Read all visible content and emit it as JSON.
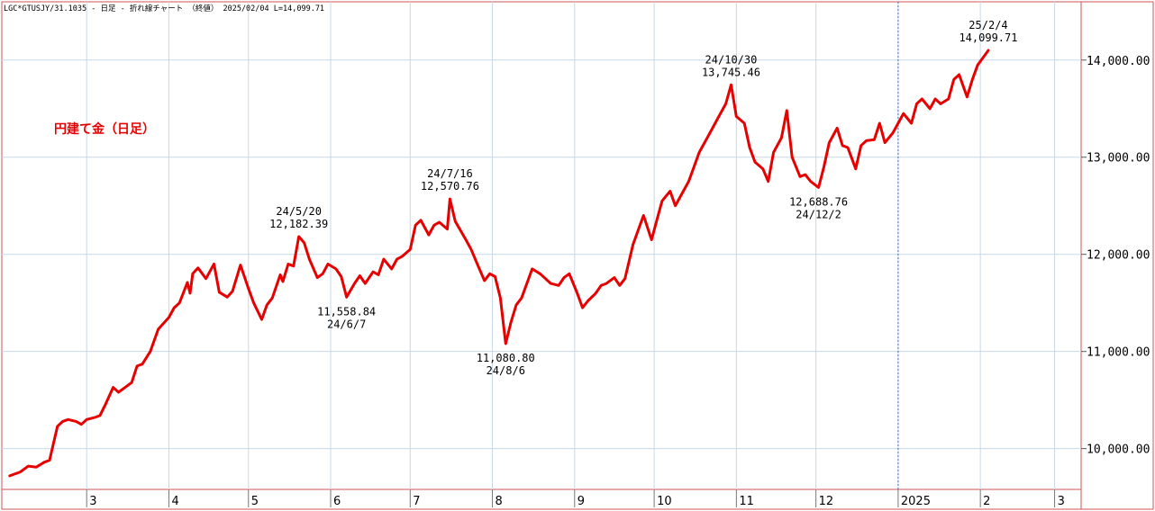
{
  "header": {
    "info": "LGC*GTUSJY/31.1035 - 日足 - 折れ線チャート （終値） 2025/02/04 L=14,099.71"
  },
  "chart_title": "円建て金（日足）",
  "colors": {
    "line": "#e60000",
    "border": "#cc5555",
    "grid": "#c8d8e8",
    "title": "#e60000",
    "text": "#000000"
  },
  "chart_data": {
    "type": "line",
    "title": "円建て金（日足）",
    "x_unit": "date",
    "ylim": [
      9580,
      14600
    ],
    "yticks": [
      10000,
      11000,
      12000,
      13000,
      14000
    ],
    "ytick_labels": [
      "10,000.00",
      "11,000.00",
      "12,000.00",
      "13,000.00",
      "14,000.00"
    ],
    "xtick_labels": [
      "3",
      "4",
      "5",
      "6",
      "7",
      "8",
      "9",
      "10",
      "11",
      "12",
      "2025",
      "2",
      "3"
    ],
    "xtick_dates": [
      "2024-03-01",
      "2024-04-01",
      "2024-05-01",
      "2024-06-01",
      "2024-07-01",
      "2024-08-01",
      "2024-09-01",
      "2024-10-01",
      "2024-11-01",
      "2024-12-01",
      "2025-01-01",
      "2025-02-01",
      "2025-03-01"
    ],
    "year_divider_date": "2025-01-01",
    "grid": true,
    "series": [
      {
        "points": [
          [
            "2024-02-01",
            9720
          ],
          [
            "2024-02-05",
            9760
          ],
          [
            "2024-02-08",
            9820
          ],
          [
            "2024-02-11",
            9810
          ],
          [
            "2024-02-14",
            9860
          ],
          [
            "2024-02-16",
            9880
          ],
          [
            "2024-02-19",
            10230
          ],
          [
            "2024-02-21",
            10280
          ],
          [
            "2024-02-23",
            10300
          ],
          [
            "2024-02-26",
            10280
          ],
          [
            "2024-02-28",
            10250
          ],
          [
            "2024-03-01",
            10300
          ],
          [
            "2024-03-04",
            10320
          ],
          [
            "2024-03-06",
            10340
          ],
          [
            "2024-03-08",
            10450
          ],
          [
            "2024-03-11",
            10630
          ],
          [
            "2024-03-13",
            10580
          ],
          [
            "2024-03-15",
            10620
          ],
          [
            "2024-03-18",
            10680
          ],
          [
            "2024-03-20",
            10850
          ],
          [
            "2024-03-22",
            10870
          ],
          [
            "2024-03-25",
            11000
          ],
          [
            "2024-03-28",
            11230
          ],
          [
            "2024-04-01",
            11350
          ],
          [
            "2024-04-03",
            11450
          ],
          [
            "2024-04-05",
            11500
          ],
          [
            "2024-04-08",
            11710
          ],
          [
            "2024-04-09",
            11600
          ],
          [
            "2024-04-10",
            11800
          ],
          [
            "2024-04-12",
            11860
          ],
          [
            "2024-04-15",
            11750
          ],
          [
            "2024-04-18",
            11900
          ],
          [
            "2024-04-20",
            11610
          ],
          [
            "2024-04-23",
            11560
          ],
          [
            "2024-04-25",
            11620
          ],
          [
            "2024-04-28",
            11890
          ],
          [
            "2024-05-01",
            11650
          ],
          [
            "2024-05-03",
            11500
          ],
          [
            "2024-05-06",
            11330
          ],
          [
            "2024-05-08",
            11480
          ],
          [
            "2024-05-10",
            11550
          ],
          [
            "2024-05-13",
            11790
          ],
          [
            "2024-05-14",
            11720
          ],
          [
            "2024-05-16",
            11900
          ],
          [
            "2024-05-18",
            11880
          ],
          [
            "2024-05-20",
            12182.39
          ],
          [
            "2024-05-22",
            12120
          ],
          [
            "2024-05-24",
            11950
          ],
          [
            "2024-05-27",
            11760
          ],
          [
            "2024-05-29",
            11800
          ],
          [
            "2024-05-31",
            11900
          ],
          [
            "2024-06-03",
            11850
          ],
          [
            "2024-06-05",
            11770
          ],
          [
            "2024-06-07",
            11558.84
          ],
          [
            "2024-06-10",
            11700
          ],
          [
            "2024-06-12",
            11780
          ],
          [
            "2024-06-14",
            11700
          ],
          [
            "2024-06-17",
            11820
          ],
          [
            "2024-06-19",
            11790
          ],
          [
            "2024-06-21",
            11950
          ],
          [
            "2024-06-24",
            11850
          ],
          [
            "2024-06-26",
            11950
          ],
          [
            "2024-06-28",
            11980
          ],
          [
            "2024-07-01",
            12050
          ],
          [
            "2024-07-03",
            12300
          ],
          [
            "2024-07-05",
            12350
          ],
          [
            "2024-07-08",
            12200
          ],
          [
            "2024-07-10",
            12300
          ],
          [
            "2024-07-12",
            12330
          ],
          [
            "2024-07-15",
            12260
          ],
          [
            "2024-07-16",
            12570.76
          ],
          [
            "2024-07-18",
            12340
          ],
          [
            "2024-07-22",
            12150
          ],
          [
            "2024-07-24",
            12050
          ],
          [
            "2024-07-26",
            11920
          ],
          [
            "2024-07-29",
            11730
          ],
          [
            "2024-07-31",
            11800
          ],
          [
            "2024-08-02",
            11770
          ],
          [
            "2024-08-04",
            11550
          ],
          [
            "2024-08-06",
            11080.8
          ],
          [
            "2024-08-08",
            11300
          ],
          [
            "2024-08-10",
            11480
          ],
          [
            "2024-08-12",
            11550
          ],
          [
            "2024-08-14",
            11700
          ],
          [
            "2024-08-16",
            11850
          ],
          [
            "2024-08-19",
            11800
          ],
          [
            "2024-08-21",
            11750
          ],
          [
            "2024-08-23",
            11700
          ],
          [
            "2024-08-26",
            11680
          ],
          [
            "2024-08-28",
            11760
          ],
          [
            "2024-08-30",
            11800
          ],
          [
            "2024-09-02",
            11600
          ],
          [
            "2024-09-04",
            11450
          ],
          [
            "2024-09-06",
            11520
          ],
          [
            "2024-09-09",
            11600
          ],
          [
            "2024-09-11",
            11680
          ],
          [
            "2024-09-13",
            11700
          ],
          [
            "2024-09-16",
            11760
          ],
          [
            "2024-09-18",
            11680
          ],
          [
            "2024-09-20",
            11750
          ],
          [
            "2024-09-23",
            12100
          ],
          [
            "2024-09-25",
            12250
          ],
          [
            "2024-09-27",
            12400
          ],
          [
            "2024-09-30",
            12150
          ],
          [
            "2024-10-02",
            12350
          ],
          [
            "2024-10-04",
            12550
          ],
          [
            "2024-10-07",
            12650
          ],
          [
            "2024-10-09",
            12500
          ],
          [
            "2024-10-11",
            12600
          ],
          [
            "2024-10-14",
            12750
          ],
          [
            "2024-10-16",
            12900
          ],
          [
            "2024-10-18",
            13050
          ],
          [
            "2024-10-21",
            13200
          ],
          [
            "2024-10-23",
            13300
          ],
          [
            "2024-10-25",
            13400
          ],
          [
            "2024-10-28",
            13550
          ],
          [
            "2024-10-30",
            13745.46
          ],
          [
            "2024-11-01",
            13420
          ],
          [
            "2024-11-04",
            13350
          ],
          [
            "2024-11-06",
            13100
          ],
          [
            "2024-11-08",
            12950
          ],
          [
            "2024-11-11",
            12880
          ],
          [
            "2024-11-13",
            12750
          ],
          [
            "2024-11-15",
            13050
          ],
          [
            "2024-11-18",
            13200
          ],
          [
            "2024-11-20",
            13480
          ],
          [
            "2024-11-22",
            13000
          ],
          [
            "2024-11-25",
            12800
          ],
          [
            "2024-11-27",
            12820
          ],
          [
            "2024-11-29",
            12750
          ],
          [
            "2024-12-02",
            12688.76
          ],
          [
            "2024-12-04",
            12900
          ],
          [
            "2024-12-06",
            13150
          ],
          [
            "2024-12-09",
            13300
          ],
          [
            "2024-12-11",
            13120
          ],
          [
            "2024-12-13",
            13100
          ],
          [
            "2024-12-16",
            12880
          ],
          [
            "2024-12-18",
            13120
          ],
          [
            "2024-12-20",
            13170
          ],
          [
            "2024-12-23",
            13180
          ],
          [
            "2024-12-25",
            13350
          ],
          [
            "2024-12-27",
            13150
          ],
          [
            "2024-12-30",
            13250
          ],
          [
            "2025-01-01",
            13350
          ],
          [
            "2025-01-03",
            13450
          ],
          [
            "2025-01-06",
            13350
          ],
          [
            "2025-01-08",
            13550
          ],
          [
            "2025-01-10",
            13600
          ],
          [
            "2025-01-13",
            13500
          ],
          [
            "2025-01-15",
            13600
          ],
          [
            "2025-01-17",
            13550
          ],
          [
            "2025-01-20",
            13600
          ],
          [
            "2025-01-22",
            13800
          ],
          [
            "2025-01-24",
            13850
          ],
          [
            "2025-01-27",
            13620
          ],
          [
            "2025-01-29",
            13800
          ],
          [
            "2025-01-31",
            13950
          ],
          [
            "2025-02-04",
            14099.71
          ]
        ]
      }
    ],
    "annotations": [
      {
        "date": "2024-05-20",
        "value": 12182.39,
        "date_label": "24/5/20",
        "value_label": "12,182.39",
        "position": "above"
      },
      {
        "date": "2024-06-07",
        "value": 11558.84,
        "date_label": "24/6/7",
        "value_label": "11,558.84",
        "position": "below"
      },
      {
        "date": "2024-07-16",
        "value": 12570.76,
        "date_label": "24/7/16",
        "value_label": "12,570.76",
        "position": "above"
      },
      {
        "date": "2024-08-06",
        "value": 11080.8,
        "date_label": "24/8/6",
        "value_label": "11,080.80",
        "position": "below"
      },
      {
        "date": "2024-10-30",
        "value": 13745.46,
        "date_label": "24/10/30",
        "value_label": "13,745.46",
        "position": "above"
      },
      {
        "date": "2024-12-02",
        "value": 12688.76,
        "date_label": "24/12/2",
        "value_label": "12,688.76",
        "position": "below"
      },
      {
        "date": "2025-02-04",
        "value": 14099.71,
        "date_label": "25/2/4",
        "value_label": "14,099.71",
        "position": "above"
      }
    ]
  }
}
